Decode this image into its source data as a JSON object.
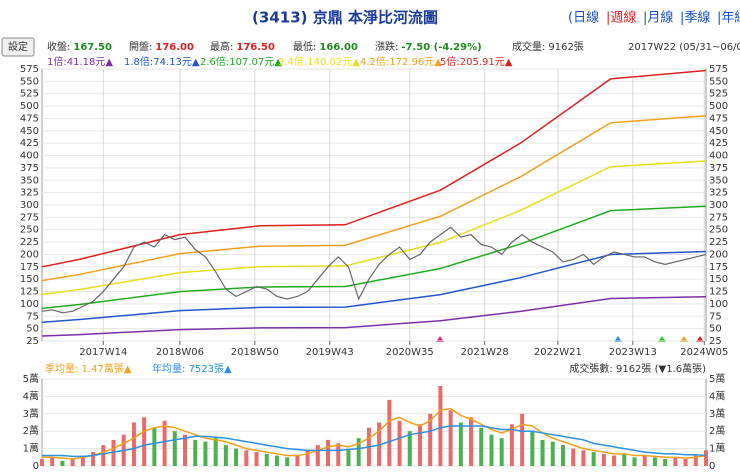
{
  "header": {
    "title": "(3413) 京鼎 本淨比河流圖",
    "periods": [
      "(日線",
      "|週線",
      "|月線",
      "|季線",
      "|年線"
    ],
    "period_color": "#1a4fc4",
    "selected_period": 1,
    "selected_color": "#e02020",
    "button": "設定",
    "info": [
      {
        "label": "收盤:",
        "value": "167.50",
        "color": "#1f8a1f"
      },
      {
        "label": "開盤:",
        "value": "176.00",
        "color": "#e02020"
      },
      {
        "label": "最高:",
        "value": "176.50",
        "color": "#e02020"
      },
      {
        "label": "最低:",
        "value": "166.00",
        "color": "#1f8a1f"
      },
      {
        "label": "漲跌:",
        "value": "-7.50 (-4.29%)",
        "color": "#1f8a1f"
      },
      {
        "label": "成交量:",
        "value": "9162張",
        "color": "#333333"
      },
      {
        "label": "",
        "value": "2017W22 (05/31~06/0",
        "color": "#333333"
      }
    ]
  },
  "chart_data": [
    {
      "type": "line",
      "ylim": [
        25,
        575
      ],
      "yticks": [
        25,
        50,
        75,
        100,
        125,
        150,
        175,
        200,
        225,
        250,
        275,
        300,
        325,
        350,
        375,
        400,
        425,
        450,
        475,
        500,
        525,
        550,
        575
      ],
      "xlim": [
        0,
        390
      ],
      "xticks": [
        {
          "value": 36,
          "label": "2017W14"
        },
        {
          "value": 81,
          "label": "2018W06"
        },
        {
          "value": 125,
          "label": "2018W50"
        },
        {
          "value": 169,
          "label": "2019W43"
        },
        {
          "value": 216,
          "label": "2020W35"
        },
        {
          "value": 260,
          "label": "2021W28"
        },
        {
          "value": 303,
          "label": "2022W21"
        },
        {
          "value": 347,
          "label": "2023W13"
        },
        {
          "value": 389,
          "label": "2024W05"
        }
      ],
      "grid": true,
      "series": [
        {
          "name": "1倍:41.18元▲",
          "color": "#7b2fa8",
          "x": [
            0,
            22,
            81,
            128,
            178,
            234,
            281,
            334,
            390
          ],
          "values": [
            35,
            38,
            48,
            51.6,
            52,
            66,
            85,
            111,
            114.4
          ]
        },
        {
          "name": "1.8倍:74.13元▲",
          "color": "#2255cc",
          "x": [
            0,
            22,
            81,
            128,
            178,
            234,
            281,
            334,
            390
          ],
          "values": [
            63,
            68.4,
            86.4,
            92.9,
            93.6,
            118.8,
            153,
            199.8,
            205.9
          ]
        },
        {
          "name": "2.6倍:107.07元▲",
          "color": "#22aa22",
          "x": [
            0,
            22,
            81,
            128,
            178,
            234,
            281,
            334,
            390
          ],
          "values": [
            91,
            98.8,
            124.8,
            134.2,
            135.2,
            171.6,
            221,
            288.6,
            297.4
          ]
        },
        {
          "name": "3.4倍:140.02元▲",
          "color": "#e6de1e",
          "x": [
            0,
            22,
            81,
            128,
            178,
            234,
            281,
            334,
            390
          ],
          "values": [
            119,
            129.2,
            163.2,
            175.4,
            176.8,
            224.4,
            289,
            377.4,
            389
          ]
        },
        {
          "name": "4.2倍:172.96元▲",
          "color": "#f0a020",
          "x": [
            0,
            22,
            81,
            128,
            178,
            234,
            281,
            334,
            390
          ],
          "values": [
            147,
            159.6,
            201.6,
            216.7,
            218.4,
            277.2,
            357,
            466.2,
            480.5
          ]
        },
        {
          "name": "5倍:205.91元▲",
          "color": "#e02020",
          "x": [
            0,
            22,
            81,
            128,
            178,
            234,
            281,
            334,
            390
          ],
          "values": [
            175,
            190,
            240,
            258,
            260,
            330,
            425,
            555,
            572
          ]
        }
      ],
      "price": {
        "color": "#666666",
        "x": [
          0,
          6,
          12,
          18,
          24,
          30,
          36,
          42,
          48,
          54,
          60,
          66,
          72,
          78,
          84,
          90,
          96,
          102,
          108,
          114,
          120,
          126,
          132,
          138,
          144,
          150,
          156,
          162,
          168,
          174,
          180,
          186,
          192,
          198,
          204,
          210,
          216,
          222,
          228,
          234,
          240,
          246,
          252,
          258,
          264,
          270,
          276,
          282,
          288,
          294,
          300,
          306,
          312,
          318,
          324,
          330,
          336,
          342,
          348,
          354,
          360,
          366,
          372,
          378,
          384,
          390
        ],
        "values": [
          85,
          88,
          82,
          85,
          95,
          105,
          125,
          150,
          175,
          215,
          225,
          215,
          240,
          230,
          235,
          210,
          195,
          165,
          130,
          115,
          125,
          135,
          130,
          115,
          110,
          115,
          125,
          150,
          175,
          195,
          175,
          110,
          150,
          180,
          200,
          215,
          190,
          200,
          225,
          240,
          255,
          235,
          240,
          220,
          215,
          200,
          225,
          240,
          225,
          215,
          205,
          185,
          190,
          200,
          180,
          195,
          205,
          200,
          195,
          195,
          185,
          180,
          185,
          190,
          195,
          200
        ]
      }
    },
    {
      "type": "bar",
      "ylim": [
        0,
        5
      ],
      "yticks": [
        0,
        {
          "value": 1,
          "label": "1萬"
        },
        {
          "value": 2,
          "label": "2萬"
        },
        {
          "value": 3,
          "label": "3萬"
        },
        {
          "value": 4,
          "label": "4萬"
        },
        {
          "value": 5,
          "label": "5萬"
        }
      ],
      "xlim": [
        0,
        390
      ],
      "up_color": "#e86a6a",
      "down_color": "#4caf50",
      "annotation": "成交張數: 9162張 (▼1.6萬張)",
      "x": [
        0,
        6,
        12,
        18,
        24,
        30,
        36,
        42,
        48,
        54,
        60,
        66,
        72,
        78,
        84,
        90,
        96,
        102,
        108,
        114,
        120,
        126,
        132,
        138,
        144,
        150,
        156,
        162,
        168,
        174,
        180,
        186,
        192,
        198,
        204,
        210,
        216,
        222,
        228,
        234,
        240,
        246,
        252,
        258,
        264,
        270,
        276,
        282,
        288,
        294,
        300,
        306,
        312,
        318,
        324,
        330,
        336,
        342,
        348,
        354,
        360,
        366,
        372,
        378,
        384,
        390
      ],
      "values": [
        0.4,
        0.5,
        0.3,
        0.4,
        0.6,
        0.8,
        1.2,
        1.5,
        1.8,
        2.5,
        2.8,
        2.2,
        2.6,
        2.0,
        1.8,
        1.5,
        1.4,
        1.6,
        1.2,
        1.0,
        0.9,
        0.8,
        0.7,
        0.6,
        0.5,
        0.6,
        0.9,
        1.2,
        1.5,
        1.3,
        0.9,
        1.6,
        2.2,
        2.5,
        3.8,
        2.6,
        2.0,
        2.4,
        3.0,
        4.6,
        3.2,
        2.5,
        2.8,
        2.2,
        1.8,
        1.6,
        2.4,
        3.0,
        2.0,
        1.5,
        1.4,
        1.2,
        1.0,
        0.9,
        0.8,
        0.7,
        0.6,
        0.7,
        0.5,
        0.6,
        0.5,
        0.4,
        0.5,
        0.4,
        0.6,
        0.9
      ],
      "series": [
        {
          "name": "季均量: 1.47萬張▲",
          "color": "#f0a020",
          "values": [
            0.5,
            0.5,
            0.45,
            0.4,
            0.5,
            0.6,
            0.8,
            1.0,
            1.3,
            1.6,
            2.0,
            2.2,
            2.3,
            2.2,
            2.0,
            1.8,
            1.6,
            1.5,
            1.4,
            1.2,
            1.0,
            0.9,
            0.8,
            0.7,
            0.6,
            0.6,
            0.7,
            0.9,
            1.1,
            1.2,
            1.1,
            1.3,
            1.6,
            2.0,
            2.6,
            2.8,
            2.5,
            2.3,
            2.6,
            3.2,
            3.3,
            2.9,
            2.7,
            2.4,
            2.1,
            1.9,
            2.1,
            2.4,
            2.3,
            1.9,
            1.6,
            1.4,
            1.2,
            1.0,
            0.9,
            0.8,
            0.7,
            0.7,
            0.6,
            0.6,
            0.55,
            0.5,
            0.5,
            0.45,
            0.5,
            0.6
          ]
        },
        {
          "name": "年均量: 7523張▲",
          "color": "#2f8fe0",
          "values": [
            0.6,
            0.6,
            0.6,
            0.55,
            0.55,
            0.6,
            0.7,
            0.8,
            0.9,
            1.0,
            1.2,
            1.3,
            1.4,
            1.5,
            1.6,
            1.7,
            1.7,
            1.65,
            1.6,
            1.5,
            1.4,
            1.3,
            1.2,
            1.1,
            1.0,
            0.95,
            0.9,
            0.9,
            0.9,
            0.9,
            0.95,
            1.0,
            1.1,
            1.2,
            1.4,
            1.6,
            1.8,
            1.9,
            2.0,
            2.2,
            2.3,
            2.3,
            2.3,
            2.3,
            2.2,
            2.1,
            2.1,
            2.0,
            2.0,
            1.9,
            1.8,
            1.7,
            1.6,
            1.5,
            1.3,
            1.2,
            1.1,
            1.0,
            0.9,
            0.8,
            0.75,
            0.7,
            0.7,
            0.65,
            0.65,
            0.6
          ]
        }
      ]
    }
  ]
}
